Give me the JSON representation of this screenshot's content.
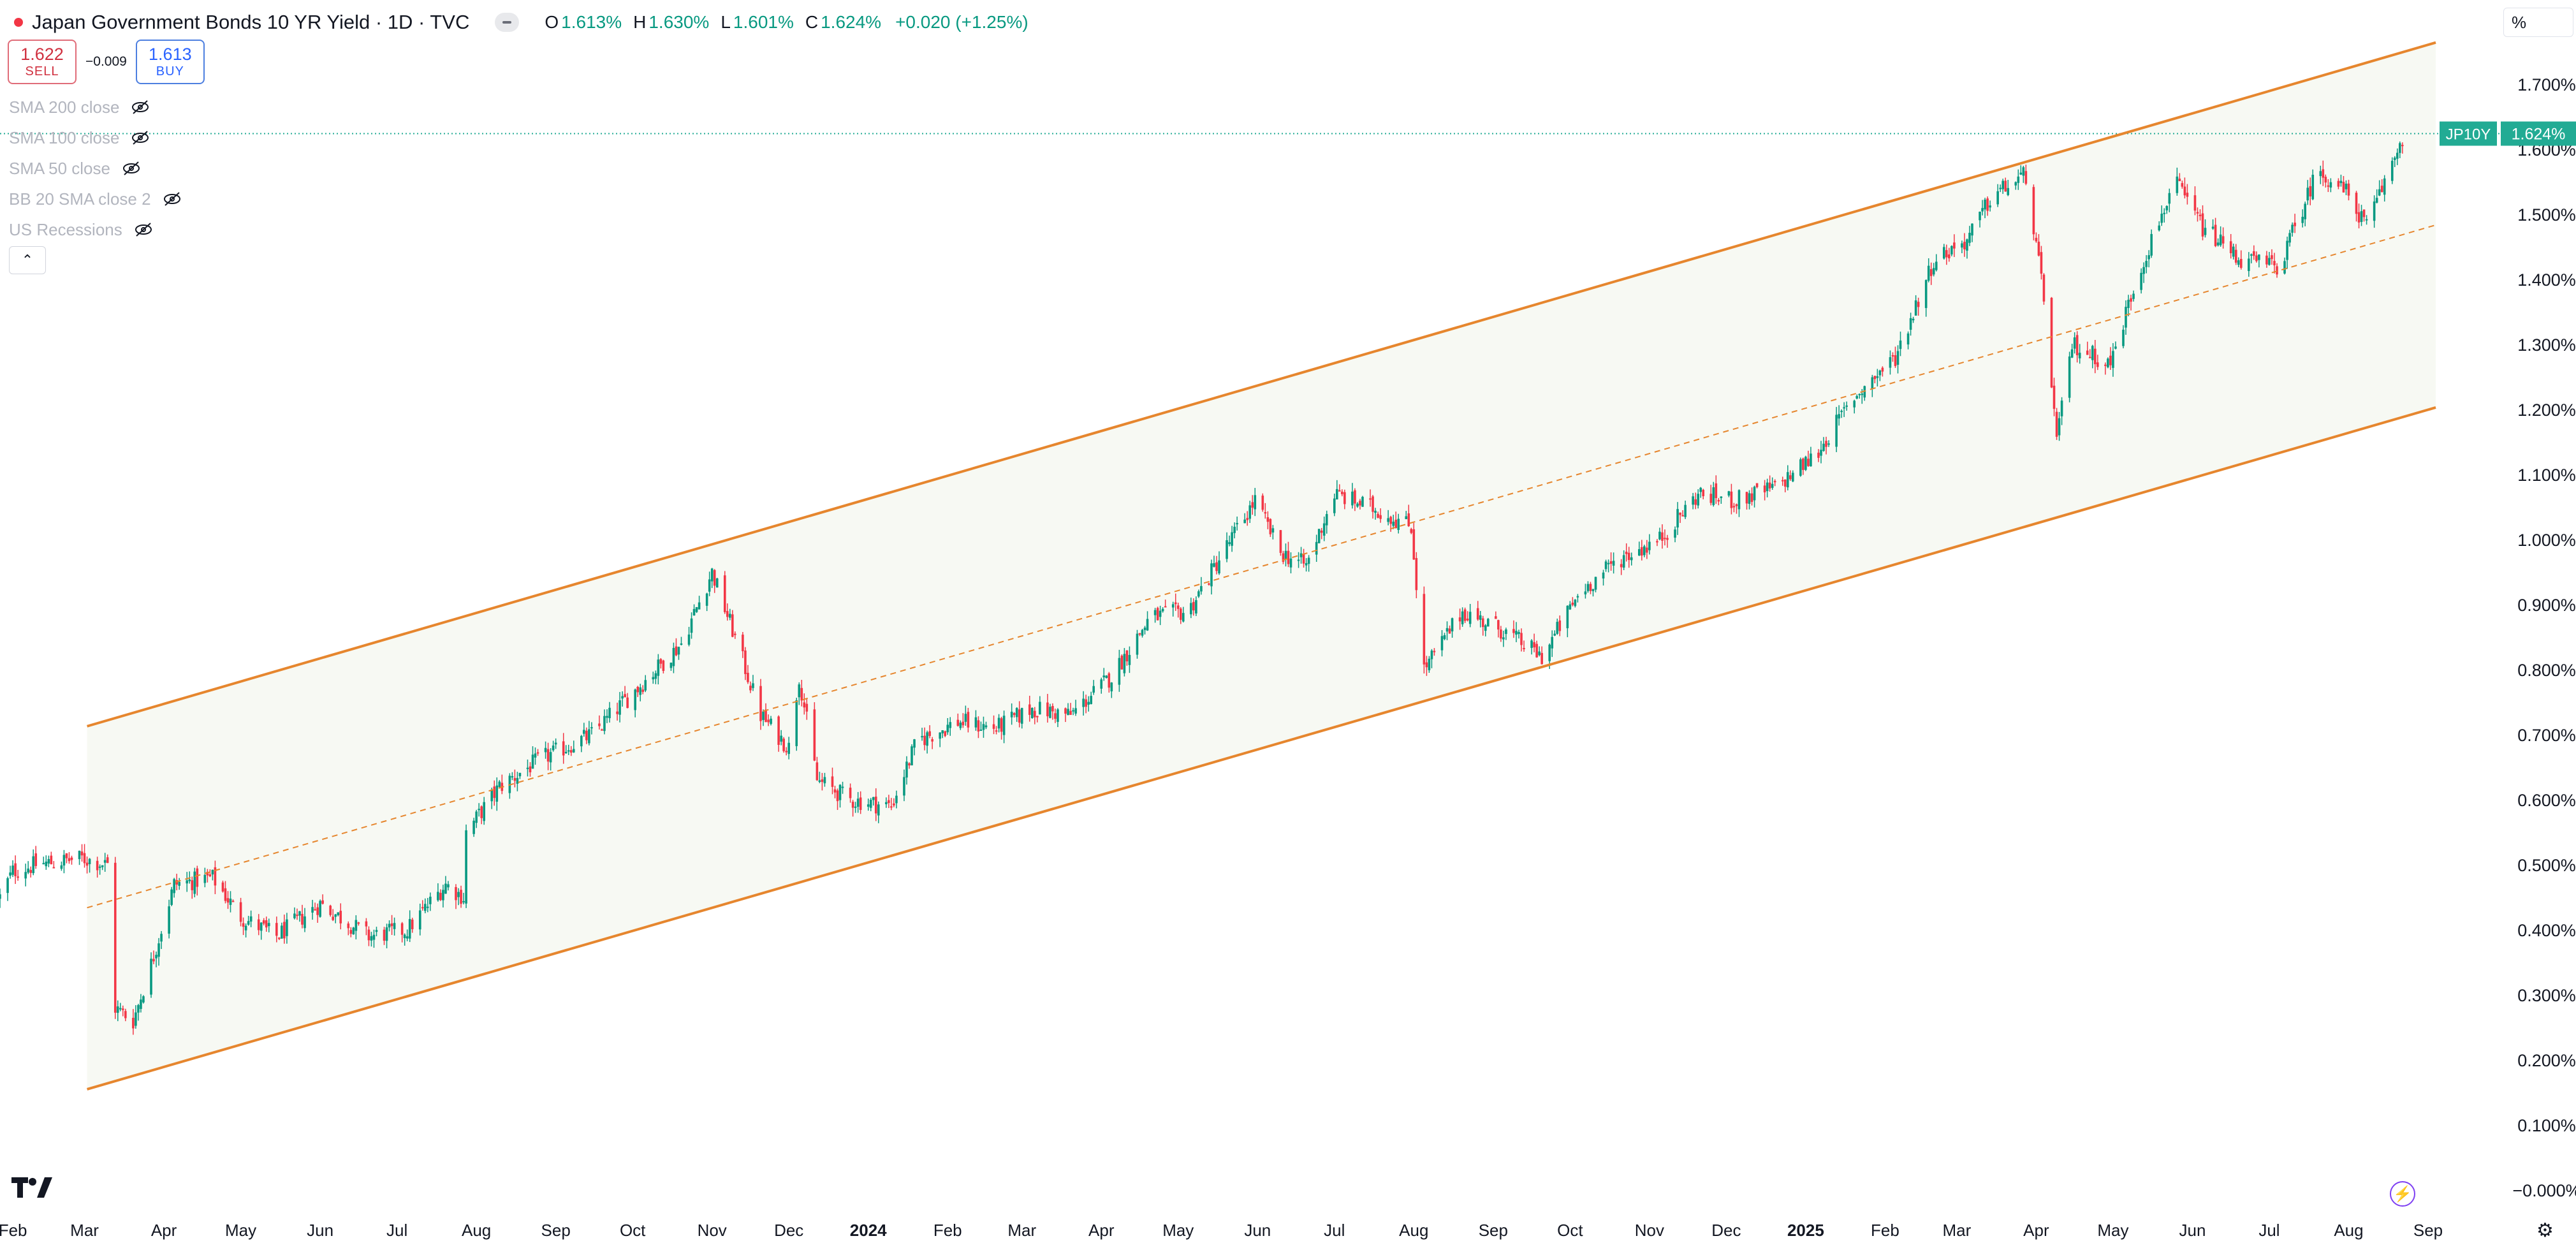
{
  "header": {
    "title": "Japan Government Bonds 10 YR Yield · 1D · TVC",
    "ohlc": [
      {
        "label": "O",
        "value": "1.613%"
      },
      {
        "label": "H",
        "value": "1.630%"
      },
      {
        "label": "L",
        "value": "1.601%"
      },
      {
        "label": "C",
        "value": "1.624%"
      }
    ],
    "change": "+0.020 (+1.25%)"
  },
  "trade": {
    "sell_price": "1.622",
    "sell_label": "SELL",
    "spread": "−0.009",
    "buy_price": "1.613",
    "buy_label": "BUY"
  },
  "indicators": [
    {
      "label": "SMA 200 close"
    },
    {
      "label": "SMA 100 close"
    },
    {
      "label": "SMA 50 close"
    },
    {
      "label": "BB 20 SMA close 2"
    },
    {
      "label": "US Recessions"
    }
  ],
  "scale_mode": "%",
  "chart_data": {
    "type": "candlestick",
    "symbol": "JP10Y",
    "last_value": 1.624,
    "last_label": "1.624%",
    "y_ticks": [
      "1.700%",
      "1.600%",
      "1.500%",
      "1.400%",
      "1.300%",
      "1.200%",
      "1.100%",
      "1.000%",
      "0.900%",
      "0.800%",
      "0.700%",
      "0.600%",
      "0.500%",
      "0.400%",
      "0.300%",
      "0.200%",
      "0.100%",
      "−0.000%"
    ],
    "ylim": [
      0.0,
      1.7
    ],
    "x_ticks": [
      {
        "label": "Feb",
        "bold": false
      },
      {
        "label": "Mar",
        "bold": false
      },
      {
        "label": "Apr",
        "bold": false
      },
      {
        "label": "May",
        "bold": false
      },
      {
        "label": "Jun",
        "bold": false
      },
      {
        "label": "Jul",
        "bold": false
      },
      {
        "label": "Aug",
        "bold": false
      },
      {
        "label": "Sep",
        "bold": false
      },
      {
        "label": "Oct",
        "bold": false
      },
      {
        "label": "Nov",
        "bold": false
      },
      {
        "label": "Dec",
        "bold": false
      },
      {
        "label": "2024",
        "bold": true
      },
      {
        "label": "Feb",
        "bold": false
      },
      {
        "label": "Mar",
        "bold": false
      },
      {
        "label": "Apr",
        "bold": false
      },
      {
        "label": "May",
        "bold": false
      },
      {
        "label": "Jun",
        "bold": false
      },
      {
        "label": "Jul",
        "bold": false
      },
      {
        "label": "Aug",
        "bold": false
      },
      {
        "label": "Sep",
        "bold": false
      },
      {
        "label": "Oct",
        "bold": false
      },
      {
        "label": "Nov",
        "bold": false
      },
      {
        "label": "Dec",
        "bold": false
      },
      {
        "label": "2025",
        "bold": true
      },
      {
        "label": "Feb",
        "bold": false
      },
      {
        "label": "Mar",
        "bold": false
      },
      {
        "label": "Apr",
        "bold": false
      },
      {
        "label": "May",
        "bold": false
      },
      {
        "label": "Jun",
        "bold": false
      },
      {
        "label": "Jul",
        "bold": false
      },
      {
        "label": "Aug",
        "bold": false
      },
      {
        "label": "Sep",
        "bold": false
      }
    ],
    "series_anchors": [
      {
        "date": "2023-01-27",
        "close": 0.45
      },
      {
        "date": "2023-02-01",
        "close": 0.49
      },
      {
        "date": "2023-02-10",
        "close": 0.5
      },
      {
        "date": "2023-02-28",
        "close": 0.51
      },
      {
        "date": "2023-03-10",
        "close": 0.5
      },
      {
        "date": "2023-03-13",
        "close": 0.28
      },
      {
        "date": "2023-03-20",
        "close": 0.26
      },
      {
        "date": "2023-03-28",
        "close": 0.36
      },
      {
        "date": "2023-04-05",
        "close": 0.47
      },
      {
        "date": "2023-04-20",
        "close": 0.48
      },
      {
        "date": "2023-05-01",
        "close": 0.42
      },
      {
        "date": "2023-05-15",
        "close": 0.39
      },
      {
        "date": "2023-06-01",
        "close": 0.44
      },
      {
        "date": "2023-06-20",
        "close": 0.39
      },
      {
        "date": "2023-07-05",
        "close": 0.4
      },
      {
        "date": "2023-07-20",
        "close": 0.47
      },
      {
        "date": "2023-07-27",
        "close": 0.45
      },
      {
        "date": "2023-07-28",
        "close": 0.55
      },
      {
        "date": "2023-08-10",
        "close": 0.62
      },
      {
        "date": "2023-08-25",
        "close": 0.66
      },
      {
        "date": "2023-09-15",
        "close": 0.7
      },
      {
        "date": "2023-10-05",
        "close": 0.78
      },
      {
        "date": "2023-10-20",
        "close": 0.84
      },
      {
        "date": "2023-11-01",
        "close": 0.95
      },
      {
        "date": "2023-11-10",
        "close": 0.85
      },
      {
        "date": "2023-11-20",
        "close": 0.73
      },
      {
        "date": "2023-12-01",
        "close": 0.68
      },
      {
        "date": "2023-12-05",
        "close": 0.79
      },
      {
        "date": "2023-12-12",
        "close": 0.63
      },
      {
        "date": "2023-12-25",
        "close": 0.6
      },
      {
        "date": "2024-01-10",
        "close": 0.59
      },
      {
        "date": "2024-01-20",
        "close": 0.69
      },
      {
        "date": "2024-02-05",
        "close": 0.72
      },
      {
        "date": "2024-02-20",
        "close": 0.71
      },
      {
        "date": "2024-03-05",
        "close": 0.74
      },
      {
        "date": "2024-03-20",
        "close": 0.73
      },
      {
        "date": "2024-04-05",
        "close": 0.79
      },
      {
        "date": "2024-04-20",
        "close": 0.88
      },
      {
        "date": "2024-05-05",
        "close": 0.89
      },
      {
        "date": "2024-05-20",
        "close": 0.99
      },
      {
        "date": "2024-05-31",
        "close": 1.06
      },
      {
        "date": "2024-06-10",
        "close": 0.98
      },
      {
        "date": "2024-06-20",
        "close": 0.96
      },
      {
        "date": "2024-07-01",
        "close": 1.07
      },
      {
        "date": "2024-07-15",
        "close": 1.05
      },
      {
        "date": "2024-07-31",
        "close": 1.02
      },
      {
        "date": "2024-08-05",
        "close": 0.8
      },
      {
        "date": "2024-08-20",
        "close": 0.89
      },
      {
        "date": "2024-09-05",
        "close": 0.86
      },
      {
        "date": "2024-09-20",
        "close": 0.82
      },
      {
        "date": "2024-10-05",
        "close": 0.92
      },
      {
        "date": "2024-10-20",
        "close": 0.97
      },
      {
        "date": "2024-11-05",
        "close": 1.0
      },
      {
        "date": "2024-11-20",
        "close": 1.07
      },
      {
        "date": "2024-12-05",
        "close": 1.06
      },
      {
        "date": "2024-12-20",
        "close": 1.08
      },
      {
        "date": "2025-01-05",
        "close": 1.13
      },
      {
        "date": "2025-01-20",
        "close": 1.22
      },
      {
        "date": "2025-02-05",
        "close": 1.28
      },
      {
        "date": "2025-02-20",
        "close": 1.43
      },
      {
        "date": "2025-03-05",
        "close": 1.46
      },
      {
        "date": "2025-03-15",
        "close": 1.53
      },
      {
        "date": "2025-03-28",
        "close": 1.56
      },
      {
        "date": "2025-04-05",
        "close": 1.34
      },
      {
        "date": "2025-04-09",
        "close": 1.15
      },
      {
        "date": "2025-04-15",
        "close": 1.3
      },
      {
        "date": "2025-04-30",
        "close": 1.27
      },
      {
        "date": "2025-05-10",
        "close": 1.4
      },
      {
        "date": "2025-05-20",
        "close": 1.5
      },
      {
        "date": "2025-05-25",
        "close": 1.55
      },
      {
        "date": "2025-06-05",
        "close": 1.48
      },
      {
        "date": "2025-06-20",
        "close": 1.43
      },
      {
        "date": "2025-07-05",
        "close": 1.42
      },
      {
        "date": "2025-07-20",
        "close": 1.57
      },
      {
        "date": "2025-08-01",
        "close": 1.53
      },
      {
        "date": "2025-08-08",
        "close": 1.48
      },
      {
        "date": "2025-08-15",
        "close": 1.55
      },
      {
        "date": "2025-08-22",
        "close": 1.62
      }
    ],
    "channel": {
      "upper": [
        {
          "date": "2023-03-02",
          "value": 0.713
        },
        {
          "date": "2025-09-04",
          "value": 1.764
        }
      ],
      "lower": [
        {
          "date": "2023-03-02",
          "value": 0.155
        },
        {
          "date": "2025-09-04",
          "value": 1.203
        }
      ],
      "color": "#e6862e"
    },
    "colors": {
      "up": "#089981",
      "down": "#f23645",
      "channel": "#e6862e",
      "fill": "#f7f9f3",
      "last_label_bg": "#22ab94"
    }
  }
}
